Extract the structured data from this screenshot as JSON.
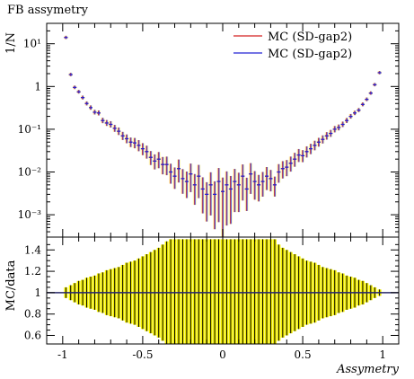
{
  "title": "FB assymetry",
  "chart_data": {
    "type": "scatter",
    "title": "FB assymetry",
    "xlabel": "Assymetry",
    "ylabel_top": "1/N",
    "ylabel_bottom": "MC/data",
    "xlim": [
      -1.1,
      1.1
    ],
    "ylim_top": [
      0.0003,
      30
    ],
    "yscale_top": "log",
    "ylim_bottom": [
      0.52,
      1.52
    ],
    "legend_position": "top-right",
    "x_ticks": [
      -1,
      -0.5,
      0,
      0.5,
      1
    ],
    "x_tick_labels": [
      "-1",
      "-0.5",
      "0",
      "0.5",
      "1"
    ],
    "top_y_ticks": [
      0.001,
      0.01,
      0.1,
      1,
      10
    ],
    "top_y_tick_labels": [
      "10⁻³",
      "10⁻²",
      "10⁻¹",
      "1",
      "10¹"
    ],
    "bottom_y_ticks": [
      0.6,
      0.8,
      1,
      1.2,
      1.4
    ],
    "bottom_y_tick_labels": [
      "0.6",
      "0.8",
      "1",
      "1.2",
      "1.4"
    ],
    "series": [
      {
        "name": "MC (SD-gap2)",
        "color": "#d42020"
      },
      {
        "name": "MC (SD-gap2)",
        "color": "#2020d4"
      }
    ],
    "bin_centers": [
      -0.98,
      -0.95,
      -0.925,
      -0.9,
      -0.875,
      -0.85,
      -0.825,
      -0.8,
      -0.775,
      -0.75,
      -0.725,
      -0.7,
      -0.675,
      -0.65,
      -0.625,
      -0.6,
      -0.575,
      -0.55,
      -0.525,
      -0.5,
      -0.475,
      -0.45,
      -0.425,
      -0.4,
      -0.375,
      -0.35,
      -0.325,
      -0.3,
      -0.275,
      -0.25,
      -0.225,
      -0.2,
      -0.175,
      -0.15,
      -0.125,
      -0.1,
      -0.075,
      -0.05,
      -0.025,
      0,
      0.025,
      0.05,
      0.075,
      0.1,
      0.125,
      0.15,
      0.175,
      0.2,
      0.225,
      0.25,
      0.275,
      0.3,
      0.325,
      0.35,
      0.375,
      0.4,
      0.425,
      0.45,
      0.475,
      0.5,
      0.525,
      0.55,
      0.575,
      0.6,
      0.625,
      0.65,
      0.675,
      0.7,
      0.725,
      0.75,
      0.775,
      0.8,
      0.825,
      0.85,
      0.875,
      0.9,
      0.925,
      0.95,
      0.98
    ],
    "values": [
      14,
      1.9,
      0.95,
      0.75,
      0.55,
      0.4,
      0.32,
      0.25,
      0.24,
      0.16,
      0.14,
      0.13,
      0.105,
      0.09,
      0.07,
      0.06,
      0.05,
      0.048,
      0.042,
      0.035,
      0.03,
      0.022,
      0.018,
      0.02,
      0.015,
      0.015,
      0.01,
      0.008,
      0.012,
      0.007,
      0.006,
      0.009,
      0.005,
      0.008,
      0.004,
      0.003,
      0.005,
      0.003,
      0.006,
      0.0035,
      0.005,
      0.004,
      0.006,
      0.005,
      0.008,
      0.004,
      0.009,
      0.006,
      0.005,
      0.006,
      0.008,
      0.007,
      0.005,
      0.01,
      0.012,
      0.013,
      0.016,
      0.02,
      0.025,
      0.024,
      0.03,
      0.035,
      0.042,
      0.05,
      0.058,
      0.07,
      0.08,
      0.1,
      0.11,
      0.13,
      0.16,
      0.2,
      0.24,
      0.28,
      0.38,
      0.5,
      0.7,
      1.1,
      2.1,
      14
    ],
    "ratio_values": [
      1,
      1,
      1,
      1,
      1,
      1,
      1,
      1,
      1,
      1,
      1,
      1,
      1,
      1,
      1,
      1,
      1,
      1,
      1,
      1,
      1,
      1,
      1,
      1,
      1,
      1,
      1,
      1,
      1,
      1,
      1,
      1,
      1,
      1,
      1,
      1,
      1,
      1,
      1,
      1,
      1,
      1,
      1,
      1,
      1,
      1,
      1,
      1,
      1,
      1,
      1,
      1,
      1,
      1,
      1,
      1,
      1,
      1,
      1,
      1,
      1,
      1,
      1,
      1,
      1,
      1,
      1,
      1,
      1,
      1,
      1,
      1,
      1,
      1,
      1,
      1,
      1,
      1,
      1
    ],
    "ratio_error_low": [
      0.95,
      0.93,
      0.91,
      0.89,
      0.88,
      0.86,
      0.85,
      0.84,
      0.82,
      0.81,
      0.79,
      0.78,
      0.77,
      0.76,
      0.74,
      0.72,
      0.71,
      0.7,
      0.68,
      0.66,
      0.64,
      0.62,
      0.6,
      0.58,
      0.55,
      0.52,
      0.52,
      0.52,
      0.52,
      0.52,
      0.52,
      0.52,
      0.52,
      0.52,
      0.52,
      0.52,
      0.52,
      0.52,
      0.52,
      0.52,
      0.52,
      0.52,
      0.52,
      0.52,
      0.52,
      0.52,
      0.52,
      0.52,
      0.52,
      0.52,
      0.52,
      0.52,
      0.52,
      0.55,
      0.58,
      0.6,
      0.62,
      0.64,
      0.66,
      0.68,
      0.7,
      0.71,
      0.72,
      0.74,
      0.76,
      0.77,
      0.78,
      0.79,
      0.81,
      0.82,
      0.84,
      0.85,
      0.86,
      0.88,
      0.89,
      0.91,
      0.93,
      0.95,
      0.97
    ],
    "ratio_error_high": [
      1.05,
      1.07,
      1.09,
      1.11,
      1.12,
      1.14,
      1.15,
      1.16,
      1.18,
      1.19,
      1.21,
      1.22,
      1.23,
      1.24,
      1.26,
      1.28,
      1.29,
      1.3,
      1.32,
      1.34,
      1.36,
      1.38,
      1.4,
      1.42,
      1.45,
      1.48,
      1.5,
      1.5,
      1.5,
      1.5,
      1.5,
      1.5,
      1.5,
      1.5,
      1.5,
      1.5,
      1.5,
      1.5,
      1.5,
      1.5,
      1.5,
      1.5,
      1.5,
      1.5,
      1.5,
      1.5,
      1.5,
      1.5,
      1.5,
      1.5,
      1.5,
      1.5,
      1.5,
      1.45,
      1.42,
      1.4,
      1.38,
      1.36,
      1.34,
      1.32,
      1.3,
      1.29,
      1.28,
      1.26,
      1.24,
      1.23,
      1.22,
      1.21,
      1.19,
      1.18,
      1.16,
      1.15,
      1.14,
      1.12,
      1.11,
      1.09,
      1.07,
      1.05,
      1.03
    ]
  }
}
